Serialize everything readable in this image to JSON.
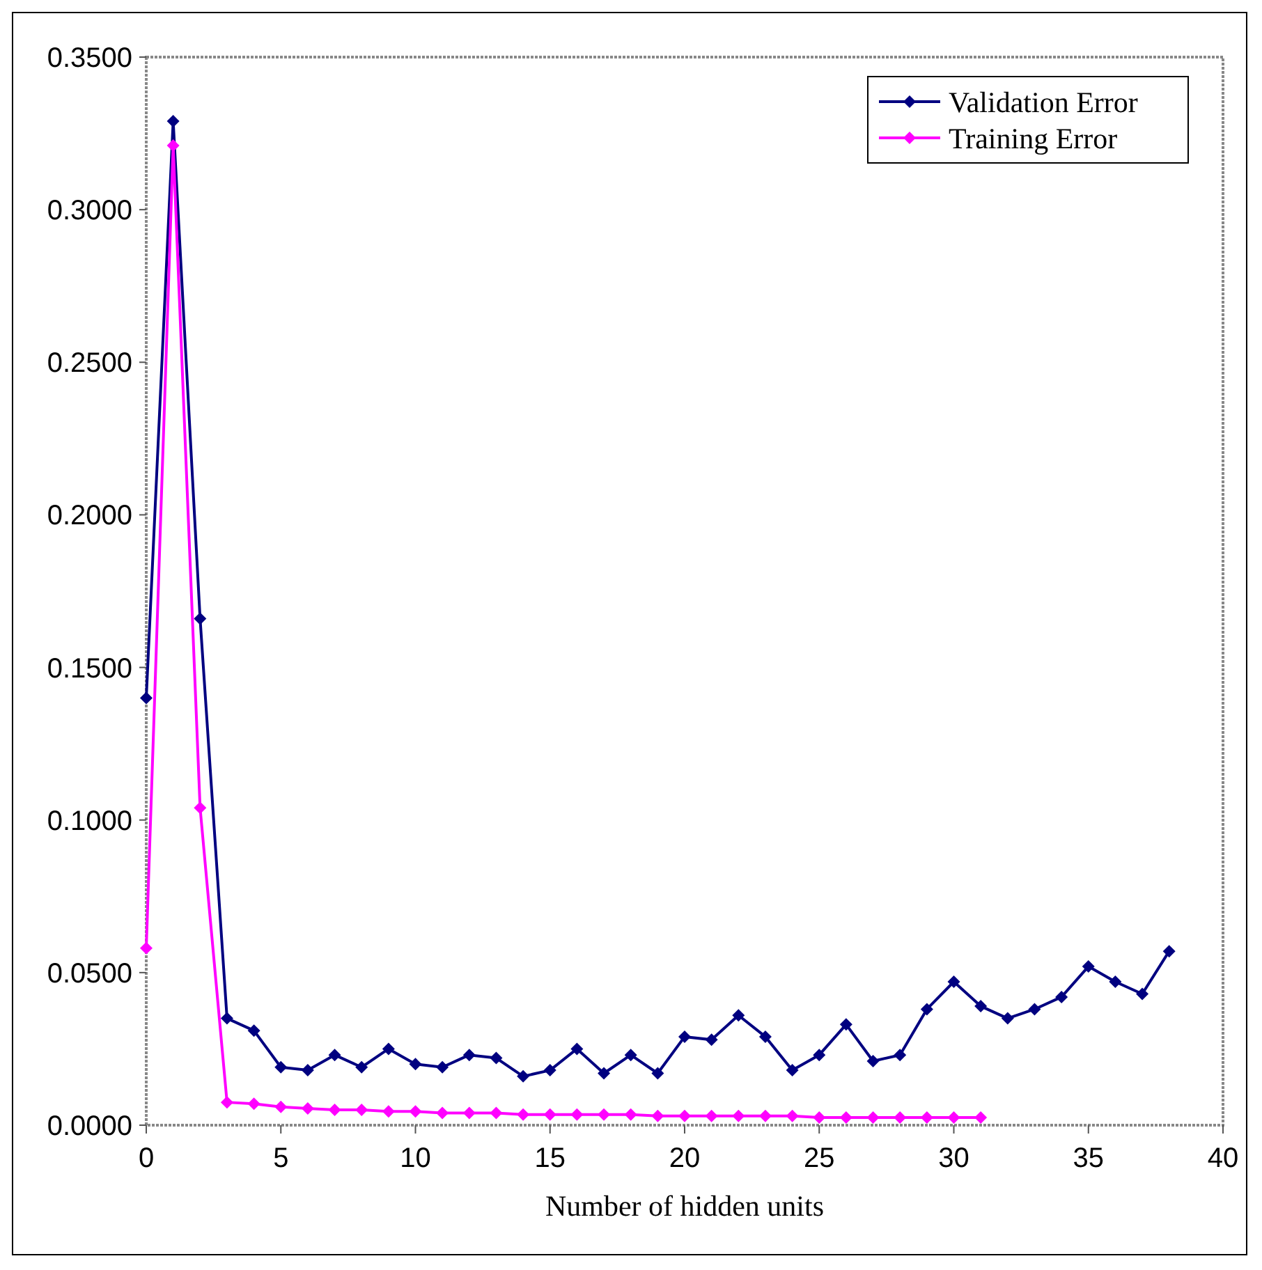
{
  "chart_data": {
    "type": "line",
    "xlabel": "Number of hidden units",
    "x": [
      0,
      1,
      2,
      3,
      4,
      5,
      6,
      7,
      8,
      9,
      10,
      11,
      12,
      13,
      14,
      15,
      16,
      17,
      18,
      19,
      20,
      21,
      22,
      23,
      24,
      25,
      26,
      27,
      28,
      29,
      30,
      31,
      32,
      33,
      34,
      35,
      36,
      37,
      38
    ],
    "series": [
      {
        "name": "Validation Error",
        "color": "#000080",
        "values": [
          0.14,
          0.329,
          0.166,
          0.035,
          0.031,
          0.019,
          0.018,
          0.023,
          0.019,
          0.025,
          0.02,
          0.019,
          0.023,
          0.022,
          0.016,
          0.018,
          0.025,
          0.017,
          0.023,
          0.017,
          0.029,
          0.028,
          0.036,
          0.029,
          0.018,
          0.023,
          0.033,
          0.021,
          0.023,
          0.038,
          0.047,
          0.039,
          0.035,
          0.038,
          0.042,
          0.052,
          0.047,
          0.043,
          0.057
        ]
      },
      {
        "name": "Training Error",
        "color": "#ff00ff",
        "x": [
          0,
          1,
          2,
          3,
          4,
          5,
          6,
          7,
          8,
          9,
          10,
          11,
          12,
          13,
          14,
          15,
          16,
          17,
          18,
          19,
          20,
          21,
          22,
          23,
          24,
          25,
          26,
          27,
          28,
          29,
          30,
          31
        ],
        "values": [
          0.058,
          0.321,
          0.104,
          0.0075,
          0.007,
          0.006,
          0.0055,
          0.005,
          0.005,
          0.0045,
          0.0045,
          0.004,
          0.004,
          0.004,
          0.0035,
          0.0035,
          0.0035,
          0.0035,
          0.0035,
          0.003,
          0.003,
          0.003,
          0.003,
          0.003,
          0.003,
          0.0025,
          0.0025,
          0.0025,
          0.0025,
          0.0025,
          0.0025,
          0.0025
        ]
      }
    ],
    "xlim": [
      0,
      40
    ],
    "xticks": [
      0,
      5,
      10,
      15,
      20,
      25,
      30,
      35,
      40
    ],
    "ylim": [
      0,
      0.35
    ],
    "yticks": [
      {
        "value": 0,
        "label": "0.0000"
      },
      {
        "value": 0.05,
        "label": "0.0500"
      },
      {
        "value": 0.1,
        "label": "0.1000"
      },
      {
        "value": 0.15,
        "label": "0.1500"
      },
      {
        "value": 0.2,
        "label": "0.2000"
      },
      {
        "value": 0.25,
        "label": "0.2500"
      },
      {
        "value": 0.3,
        "label": "0.3000"
      },
      {
        "value": 0.35,
        "label": "0.3500"
      }
    ],
    "legend": "top right",
    "marker": "diamond",
    "line_style": "solid"
  }
}
